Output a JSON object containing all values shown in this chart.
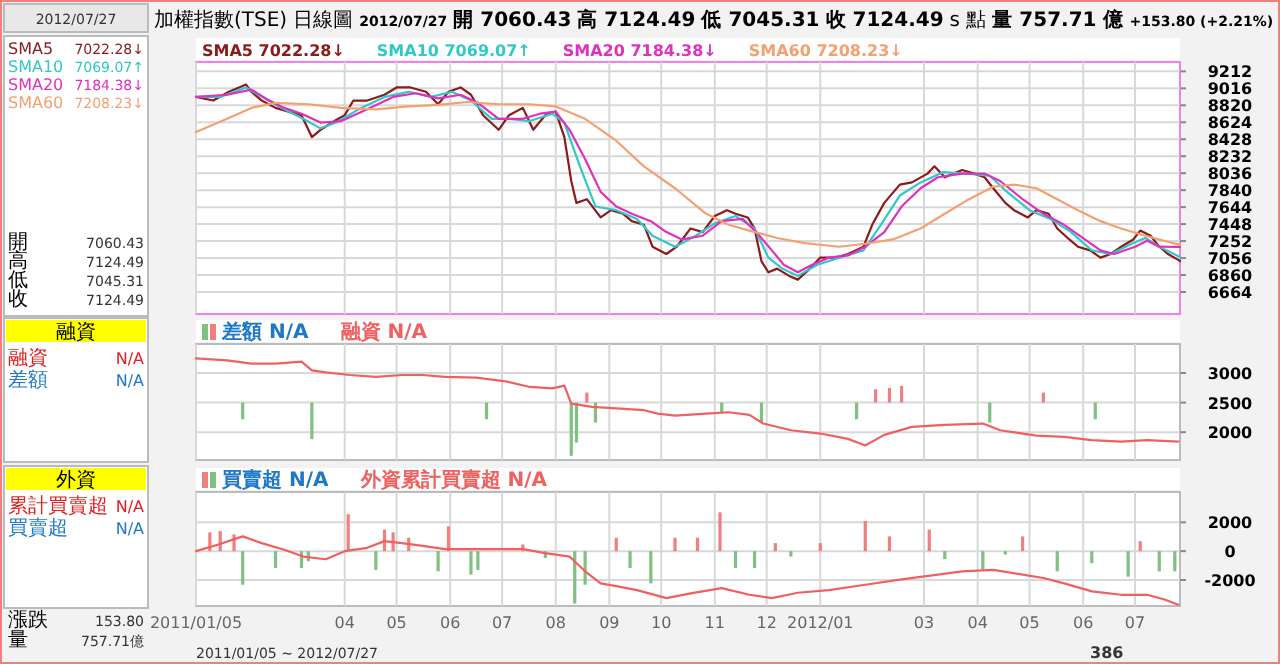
{
  "chart_data": [
    {
      "type": "line",
      "title": "加權指數(TSE)",
      "subtitle": "日線圖",
      "annotations": [
        "2012/07/27",
        "開 7060.43",
        "高 7124.49",
        "低 7045.31",
        "收 7124.49",
        "s 點",
        "量 757.71 億",
        "+153.80 (+2.21%)",
        "2012/07/27",
        "SMA5",
        "7022.28↓",
        "SMA10",
        "7069.07↑",
        "SMA20",
        "7184.38↓",
        "SMA60",
        "7208.23↓",
        "開",
        "7060.43",
        "高",
        "7124.49",
        "低",
        "7045.31",
        "收",
        "7124.49"
      ],
      "xlim": [
        "2011-01-05",
        "2012-07-27"
      ],
      "xticks": [
        {
          "value": "2011-01-05",
          "label": null
        },
        {
          "value": "2011-04-01",
          "label": null
        },
        {
          "value": "2011-05-01",
          "label": null
        },
        {
          "value": "2011-06-01",
          "label": null
        },
        {
          "value": "2011-07-01",
          "label": null
        },
        {
          "value": "2011-08-01",
          "label": null
        },
        {
          "value": "2011-09-01",
          "label": null
        },
        {
          "value": "2011-10-01",
          "label": null
        },
        {
          "value": "2011-11-01",
          "label": null
        },
        {
          "value": "2011-12-01",
          "label": null
        },
        {
          "value": "2012-01-01",
          "label": null
        },
        {
          "value": "2012-03-01",
          "label": null
        },
        {
          "value": "2012-04-01",
          "label": null
        },
        {
          "value": "2012-05-01",
          "label": null
        },
        {
          "value": "2012-06-01",
          "label": null
        },
        {
          "value": "2012-07-01",
          "label": null
        }
      ],
      "ylim": [
        6410,
        9320
      ],
      "yticks": [
        6664,
        6860,
        7056,
        7252,
        7448,
        7644,
        7840,
        8036,
        8232,
        8428,
        8624,
        8820,
        9016,
        9212
      ],
      "tick_labels": "y",
      "grid": true,
      "legend": "top left",
      "series": [
        {
          "name": "SMA5 7022.28↓",
          "color": "#8b1a1a",
          "x": [
            "2011-01-05",
            "2011-01-15",
            "2011-01-24",
            "2011-02-03",
            "2011-02-06",
            "2011-02-12",
            "2011-02-20",
            "2011-02-27",
            "2011-03-07",
            "2011-03-13",
            "2011-03-18",
            "2011-03-26",
            "2011-04-01",
            "2011-04-06",
            "2011-04-14",
            "2011-04-24",
            "2011-05-01",
            "2011-05-09",
            "2011-05-18",
            "2011-05-25",
            "2011-05-31",
            "2011-06-07",
            "2011-06-13",
            "2011-06-20",
            "2011-06-29",
            "2011-07-05",
            "2011-07-13",
            "2011-07-19",
            "2011-07-26",
            "2011-08-01",
            "2011-08-06",
            "2011-08-10",
            "2011-08-13",
            "2011-08-19",
            "2011-08-27",
            "2011-09-02",
            "2011-09-09",
            "2011-09-14",
            "2011-09-21",
            "2011-09-26",
            "2011-10-04",
            "2011-10-10",
            "2011-10-18",
            "2011-10-25",
            "2011-11-01",
            "2011-11-08",
            "2011-11-13",
            "2011-11-20",
            "2011-11-24",
            "2011-11-28",
            "2011-12-02",
            "2011-12-07",
            "2011-12-14",
            "2011-12-19",
            "2011-12-26",
            "2012-01-01",
            "2012-01-10",
            "2012-01-17",
            "2012-01-26",
            "2012-01-31",
            "2012-02-07",
            "2012-02-16",
            "2012-02-23",
            "2012-03-03",
            "2012-03-07",
            "2012-03-13",
            "2012-03-23",
            "2012-03-30",
            "2012-04-05",
            "2012-04-10",
            "2012-04-17",
            "2012-04-22",
            "2012-04-30",
            "2012-05-05",
            "2012-05-12",
            "2012-05-17",
            "2012-05-24",
            "2012-05-29",
            "2012-06-05",
            "2012-06-11",
            "2012-06-17",
            "2012-06-23",
            "2012-06-30",
            "2012-07-04",
            "2012-07-10",
            "2012-07-15",
            "2012-07-20",
            "2012-07-26",
            "2012-07-27"
          ],
          "values": [
            8917,
            8875,
            8976,
            9060,
            8976,
            8875,
            8790,
            8748,
            8706,
            8453,
            8537,
            8638,
            8706,
            8875,
            8875,
            8942,
            9026,
            9026,
            8976,
            8832,
            8976,
            9026,
            8942,
            8706,
            8537,
            8706,
            8790,
            8537,
            8706,
            8748,
            8453,
            7946,
            7693,
            7736,
            7525,
            7609,
            7567,
            7482,
            7440,
            7187,
            7103,
            7187,
            7398,
            7356,
            7542,
            7609,
            7567,
            7525,
            7398,
            7018,
            6892,
            6934,
            6850,
            6807,
            6934,
            7061,
            7061,
            7103,
            7187,
            7440,
            7693,
            7904,
            7930,
            8031,
            8115,
            7989,
            8073,
            8031,
            7989,
            7862,
            7693,
            7609,
            7525,
            7609,
            7567,
            7398,
            7271,
            7187,
            7145,
            7061,
            7103,
            7187,
            7271,
            7373,
            7314,
            7187,
            7103,
            7035,
            7022
          ]
        },
        {
          "name": "SMA10 7069.07↑",
          "color": "#30c8c8",
          "x": [
            "2011-01-05",
            "2011-01-19",
            "2011-02-03",
            "2011-02-12",
            "2011-02-25",
            "2011-03-08",
            "2011-03-18",
            "2011-03-27",
            "2011-04-09",
            "2011-04-24",
            "2011-05-08",
            "2011-05-21",
            "2011-06-02",
            "2011-06-13",
            "2011-06-25",
            "2011-07-05",
            "2011-07-17",
            "2011-07-30",
            "2011-08-06",
            "2011-08-15",
            "2011-08-24",
            "2011-09-05",
            "2011-09-17",
            "2011-09-26",
            "2011-10-09",
            "2011-10-21",
            "2011-11-01",
            "2011-11-13",
            "2011-11-24",
            "2011-12-02",
            "2011-12-10",
            "2011-12-19",
            "2011-12-30",
            "2012-01-12",
            "2012-01-26",
            "2012-02-05",
            "2012-02-16",
            "2012-02-28",
            "2012-03-12",
            "2012-03-26",
            "2012-04-08",
            "2012-04-18",
            "2012-05-01",
            "2012-05-13",
            "2012-05-25",
            "2012-06-06",
            "2012-06-17",
            "2012-06-30",
            "2012-07-07",
            "2012-07-15",
            "2012-07-27"
          ],
          "values": [
            8917,
            8917,
            9026,
            8917,
            8773,
            8664,
            8554,
            8621,
            8773,
            8917,
            8976,
            8917,
            8976,
            8875,
            8664,
            8664,
            8638,
            8723,
            8621,
            8115,
            7651,
            7609,
            7508,
            7314,
            7187,
            7314,
            7457,
            7542,
            7398,
            7061,
            6934,
            6850,
            6976,
            7061,
            7145,
            7440,
            7778,
            7930,
            8048,
            8031,
            8006,
            7820,
            7609,
            7508,
            7356,
            7145,
            7103,
            7229,
            7288,
            7187,
            7069
          ]
        },
        {
          "name": "SMA20 7184.38↓",
          "color": "#e030c0",
          "x": [
            "2011-01-05",
            "2011-01-23",
            "2011-02-06",
            "2011-02-15",
            "2011-02-25",
            "2011-03-07",
            "2011-03-18",
            "2011-03-30",
            "2011-04-14",
            "2011-04-29",
            "2011-05-12",
            "2011-05-25",
            "2011-06-07",
            "2011-06-17",
            "2011-06-29",
            "2011-07-13",
            "2011-07-23",
            "2011-08-01",
            "2011-08-09",
            "2011-08-18",
            "2011-08-27",
            "2011-09-05",
            "2011-09-14",
            "2011-09-25",
            "2011-10-04",
            "2011-10-13",
            "2011-10-25",
            "2011-11-05",
            "2011-11-17",
            "2011-11-25",
            "2011-12-04",
            "2011-12-11",
            "2011-12-19",
            "2011-12-27",
            "2012-01-06",
            "2012-01-17",
            "2012-01-27",
            "2012-02-07",
            "2012-02-17",
            "2012-02-28",
            "2012-03-09",
            "2012-03-23",
            "2012-04-05",
            "2012-04-14",
            "2012-04-27",
            "2012-05-09",
            "2012-05-21",
            "2012-06-02",
            "2012-06-11",
            "2012-06-19",
            "2012-07-01",
            "2012-07-08",
            "2012-07-15",
            "2012-07-27"
          ],
          "values": [
            8917,
            8942,
            9001,
            8891,
            8790,
            8723,
            8621,
            8638,
            8773,
            8917,
            8959,
            8900,
            8942,
            8849,
            8664,
            8664,
            8723,
            8748,
            8537,
            8200,
            7820,
            7651,
            7567,
            7482,
            7356,
            7271,
            7314,
            7482,
            7508,
            7356,
            7145,
            6976,
            6892,
            6976,
            7061,
            7086,
            7187,
            7356,
            7651,
            7862,
            7989,
            8031,
            8031,
            7946,
            7736,
            7567,
            7440,
            7271,
            7145,
            7103,
            7187,
            7255,
            7187,
            7184
          ]
        },
        {
          "name": "SMA60 7208.23↓",
          "color": "#f4a070",
          "x": [
            "2011-01-05",
            "2011-01-23",
            "2011-02-06",
            "2011-02-20",
            "2011-03-11",
            "2011-03-30",
            "2011-04-19",
            "2011-05-08",
            "2011-05-25",
            "2011-06-11",
            "2011-06-29",
            "2011-07-17",
            "2011-08-01",
            "2011-08-18",
            "2011-09-05",
            "2011-09-21",
            "2011-10-09",
            "2011-10-27",
            "2011-11-09",
            "2011-11-21",
            "2011-12-07",
            "2011-12-23",
            "2012-01-12",
            "2012-01-27",
            "2012-02-12",
            "2012-02-28",
            "2012-03-13",
            "2012-03-27",
            "2012-04-10",
            "2012-04-22",
            "2012-05-05",
            "2012-05-17",
            "2012-05-29",
            "2012-06-11",
            "2012-06-23",
            "2012-07-04",
            "2012-07-15",
            "2012-07-27"
          ],
          "values": [
            8512,
            8664,
            8790,
            8849,
            8832,
            8790,
            8773,
            8807,
            8824,
            8858,
            8832,
            8832,
            8807,
            8664,
            8411,
            8115,
            7862,
            7567,
            7440,
            7373,
            7288,
            7229,
            7187,
            7221,
            7271,
            7398,
            7567,
            7736,
            7879,
            7904,
            7862,
            7736,
            7609,
            7482,
            7398,
            7331,
            7271,
            7208
          ]
        }
      ]
    },
    {
      "type": "line",
      "annotations": [
        "融資",
        "融資",
        "N/A",
        "差額",
        "N/A"
      ],
      "xlim": [
        "2011-01-05",
        "2012-07-27"
      ],
      "xticks": [
        {
          "value": "2011-01-05",
          "label": null
        },
        {
          "value": "2011-04-01",
          "label": null
        },
        {
          "value": "2011-05-01",
          "label": null
        },
        {
          "value": "2011-06-01",
          "label": null
        },
        {
          "value": "2011-07-01",
          "label": null
        },
        {
          "value": "2011-08-01",
          "label": null
        },
        {
          "value": "2011-09-01",
          "label": null
        },
        {
          "value": "2011-10-01",
          "label": null
        },
        {
          "value": "2011-11-01",
          "label": null
        },
        {
          "value": "2011-12-01",
          "label": null
        },
        {
          "value": "2012-01-01",
          "label": null
        },
        {
          "value": "2012-03-01",
          "label": null
        },
        {
          "value": "2012-04-01",
          "label": null
        },
        {
          "value": "2012-05-01",
          "label": null
        },
        {
          "value": "2012-06-01",
          "label": null
        },
        {
          "value": "2012-07-01",
          "label": null
        }
      ],
      "ylim": [
        1530,
        3490
      ],
      "yticks": [
        2000,
        2500,
        3000
      ],
      "tick_labels": "y",
      "grid": true,
      "legend": "top left",
      "series": [
        {
          "name": "差額 N/A",
          "type": "bar",
          "color": "#1e78c8",
          "x": [
            "2011-02-01",
            "2011-03-13",
            "2011-06-22",
            "2011-08-10",
            "2011-08-13",
            "2011-08-19",
            "2011-08-24",
            "2011-11-05",
            "2011-11-28",
            "2012-01-22",
            "2012-02-02",
            "2012-02-10",
            "2012-02-17",
            "2012-04-08",
            "2012-05-09",
            "2012-06-08"
          ],
          "base": [
            2500,
            2500,
            2500,
            2500,
            2500,
            2500,
            2500,
            2500,
            2500,
            2500,
            2500,
            2500,
            2500,
            2500,
            2500,
            2500
          ],
          "values": [
            -281,
            -618,
            -281,
            -899,
            -674,
            169,
            -337,
            -169,
            -337,
            -281,
            225,
            247,
            281,
            -337,
            169,
            -281
          ],
          "colors": [
            "#80c080",
            "#80c080",
            "#80c080",
            "#80c080",
            "#80c080",
            "#f08080",
            "#80c080",
            "#80c080",
            "#80c080",
            "#80c080",
            "#f08080",
            "#f08080",
            "#f08080",
            "#80c080",
            "#f08080",
            "#80c080"
          ]
        },
        {
          "name": "融資 N/A",
          "color": "#f06060",
          "x": [
            "2011-01-05",
            "2011-01-23",
            "2011-02-06",
            "2011-02-20",
            "2011-03-07",
            "2011-03-13",
            "2011-03-21",
            "2011-04-04",
            "2011-04-19",
            "2011-05-04",
            "2011-05-16",
            "2011-05-29",
            "2011-06-16",
            "2011-07-04",
            "2011-07-17",
            "2011-07-30",
            "2011-08-06",
            "2011-08-10",
            "2011-08-22",
            "2011-09-05",
            "2011-09-21",
            "2011-09-29",
            "2011-10-09",
            "2011-10-27",
            "2011-11-09",
            "2011-11-21",
            "2011-11-29",
            "2011-12-15",
            "2012-01-01",
            "2012-01-17",
            "2012-01-27",
            "2012-02-07",
            "2012-02-23",
            "2012-03-13",
            "2012-04-04",
            "2012-04-14",
            "2012-05-05",
            "2012-05-21",
            "2012-06-06",
            "2012-06-23",
            "2012-07-08",
            "2012-07-26"
          ],
          "values": [
            3247,
            3214,
            3157,
            3157,
            3191,
            3045,
            3011,
            2966,
            2933,
            2966,
            2966,
            2933,
            2921,
            2854,
            2764,
            2741,
            2786,
            2483,
            2427,
            2404,
            2371,
            2314,
            2281,
            2314,
            2337,
            2292,
            2146,
            2033,
            1977,
            1887,
            1775,
            1955,
            2090,
            2123,
            2146,
            2033,
            1943,
            1921,
            1865,
            1842,
            1865,
            1842
          ]
        }
      ]
    },
    {
      "type": "line",
      "annotations": [
        "外資",
        "累計買賣超",
        "N/A",
        "買賣超",
        "N/A",
        "漲跌",
        "153.80",
        "量",
        "757.71億",
        "2011/01/05 ~ 2012/07/27",
        "386"
      ],
      "xlim": [
        "2011-01-05",
        "2012-07-27"
      ],
      "xticks": [
        {
          "value": "2011-01-05",
          "label": "2011/01/05"
        },
        {
          "value": "2011-04-01",
          "label": "04"
        },
        {
          "value": "2011-05-01",
          "label": "05"
        },
        {
          "value": "2011-06-01",
          "label": "06"
        },
        {
          "value": "2011-07-01",
          "label": "07"
        },
        {
          "value": "2011-08-01",
          "label": "08"
        },
        {
          "value": "2011-09-01",
          "label": "09"
        },
        {
          "value": "2011-10-01",
          "label": "10"
        },
        {
          "value": "2011-11-01",
          "label": "11"
        },
        {
          "value": "2011-12-01",
          "label": "12"
        },
        {
          "value": "2012-01-01",
          "label": "2012/01"
        },
        {
          "value": "2012-03-01",
          "label": "03"
        },
        {
          "value": "2012-04-01",
          "label": "04"
        },
        {
          "value": "2012-05-01",
          "label": "05"
        },
        {
          "value": "2012-06-01",
          "label": "06"
        },
        {
          "value": "2012-07-01",
          "label": "07"
        }
      ],
      "ylim": [
        -3800,
        4100
      ],
      "yticks": [
        -2000,
        0,
        2000
      ],
      "grid": true,
      "legend": "top left",
      "series": [
        {
          "name": "買賣超 N/A",
          "type": "bar",
          "color": "#1e78c8",
          "x": [
            "2011-01-13",
            "2011-01-19",
            "2011-01-27",
            "2011-02-01",
            "2011-02-20",
            "2011-03-07",
            "2011-03-11",
            "2011-04-03",
            "2011-04-19",
            "2011-04-24",
            "2011-04-29",
            "2011-05-08",
            "2011-05-25",
            "2011-05-31",
            "2011-06-13",
            "2011-06-17",
            "2011-07-13",
            "2011-07-26",
            "2011-08-12",
            "2011-08-18",
            "2011-09-05",
            "2011-09-13",
            "2011-09-25",
            "2011-10-09",
            "2011-10-22",
            "2011-11-04",
            "2011-11-13",
            "2011-11-24",
            "2011-12-06",
            "2011-12-15",
            "2012-01-01",
            "2012-01-27",
            "2012-02-10",
            "2012-03-04",
            "2012-03-13",
            "2012-04-04",
            "2012-04-17",
            "2012-04-27",
            "2012-05-17",
            "2012-06-06",
            "2012-06-27",
            "2012-07-04",
            "2012-07-15",
            "2012-07-24"
          ],
          "values": [
            1302,
            1395,
            1163,
            -2325,
            -1163,
            -1163,
            -698,
            2558,
            -1302,
            1488,
            1302,
            930,
            -1395,
            1721,
            -1628,
            -1302,
            465,
            -465,
            -3627,
            -2325,
            930,
            -1163,
            -2232,
            930,
            930,
            2697,
            -1163,
            -1163,
            558,
            -372,
            558,
            2093,
            1023,
            1488,
            -558,
            -1302,
            -233,
            1023,
            -1395,
            -837,
            -1767,
            698,
            -1395,
            -1395
          ],
          "colors": [
            "#f08080",
            "#f08080",
            "#f08080",
            "#80c080",
            "#80c080",
            "#80c080",
            "#80c080",
            "#f08080",
            "#80c080",
            "#f08080",
            "#f08080",
            "#f08080",
            "#80c080",
            "#f08080",
            "#80c080",
            "#80c080",
            "#f08080",
            "#80c080",
            "#80c080",
            "#80c080",
            "#f08080",
            "#80c080",
            "#80c080",
            "#f08080",
            "#f08080",
            "#f08080",
            "#80c080",
            "#80c080",
            "#f08080",
            "#80c080",
            "#f08080",
            "#f08080",
            "#f08080",
            "#f08080",
            "#80c080",
            "#80c080",
            "#80c080",
            "#f08080",
            "#80c080",
            "#80c080",
            "#80c080",
            "#f08080",
            "#80c080",
            "#80c080"
          ]
        },
        {
          "name": "外資累計買賣超 N/A",
          "color": "#f06060",
          "x": [
            "2011-01-05",
            "2011-01-18",
            "2011-02-01",
            "2011-02-12",
            "2011-02-25",
            "2011-03-08",
            "2011-03-21",
            "2011-04-01",
            "2011-04-14",
            "2011-04-24",
            "2011-05-04",
            "2011-05-16",
            "2011-05-29",
            "2011-06-11",
            "2011-06-25",
            "2011-07-13",
            "2011-07-26",
            "2011-08-09",
            "2011-08-18",
            "2011-08-27",
            "2011-09-05",
            "2011-09-17",
            "2011-10-04",
            "2011-10-18",
            "2011-11-05",
            "2011-11-21",
            "2011-12-04",
            "2011-12-19",
            "2012-01-06",
            "2012-01-27",
            "2012-02-17",
            "2012-03-09",
            "2012-03-23",
            "2012-04-10",
            "2012-04-27",
            "2012-05-09",
            "2012-05-21",
            "2012-06-06",
            "2012-06-23",
            "2012-07-08",
            "2012-07-18",
            "2012-07-26"
          ],
          "values": [
            0,
            465,
            1023,
            558,
            93,
            -372,
            -558,
            0,
            233,
            698,
            558,
            372,
            140,
            140,
            140,
            140,
            -140,
            -372,
            -1395,
            -2232,
            -2418,
            -2697,
            -3255,
            -2930,
            -2558,
            -3023,
            -3255,
            -2883,
            -2697,
            -2325,
            -1953,
            -1628,
            -1395,
            -1302,
            -1628,
            -1860,
            -2232,
            -2790,
            -3023,
            -3023,
            -3348,
            -3720
          ]
        }
      ]
    }
  ]
}
